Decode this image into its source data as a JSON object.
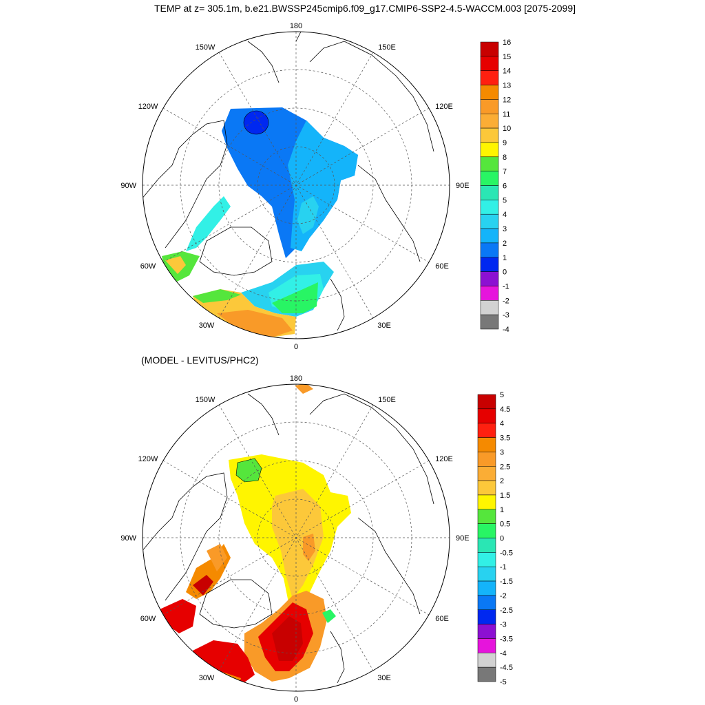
{
  "title": "TEMP at z= 305.1m, b.e21.BWSSP245cmip6.f09_g17.CMIP6-SSP2-4.5-WACCM.003 [2075-2099]",
  "subtitle": "(MODEL - LEVITUS/PHC2)",
  "map_labels": {
    "top": "180",
    "bottom": "0",
    "left": "90W",
    "right": "90E",
    "l150": "150W",
    "r150": "150E",
    "l120": "120W",
    "r120": "120E",
    "l60": "60W",
    "r60": "60E",
    "l30": "30W",
    "r30": "30E"
  },
  "colorbar_top": {
    "labels": [
      "16",
      "15",
      "14",
      "13",
      "12",
      "11",
      "10",
      "9",
      "8",
      "7",
      "6",
      "5",
      "4",
      "3",
      "2",
      "1",
      "0",
      "-1",
      "-2",
      "-3",
      "-4"
    ],
    "colors": [
      "#c80000",
      "#e60000",
      "#ff2010",
      "#f58a00",
      "#f99a28",
      "#fbad35",
      "#fcc83a",
      "#fff500",
      "#55e63c",
      "#28f564",
      "#2ae6b4",
      "#32f0e6",
      "#28d2f0",
      "#14b4fa",
      "#0a78f5",
      "#0028f0",
      "#8c10d2",
      "#e614dc",
      "#d2d2d2",
      "#787878"
    ]
  },
  "colorbar_bottom": {
    "labels": [
      "5",
      "4.5",
      "4",
      "3.5",
      "3",
      "2.5",
      "2",
      "1.5",
      "1",
      "0.5",
      "0",
      "-0.5",
      "-1",
      "-1.5",
      "-2",
      "-2.5",
      "-3",
      "-3.5",
      "-4",
      "-4.5",
      "-5"
    ],
    "colors": [
      "#c80000",
      "#e60000",
      "#ff2010",
      "#f58a00",
      "#f99a28",
      "#fbad35",
      "#fcc83a",
      "#fff500",
      "#55e63c",
      "#28f564",
      "#2ae6b4",
      "#32f0e6",
      "#28d2f0",
      "#14b4fa",
      "#0a78f5",
      "#0028f0",
      "#8c10d2",
      "#e614dc",
      "#d2d2d2",
      "#787878"
    ]
  }
}
